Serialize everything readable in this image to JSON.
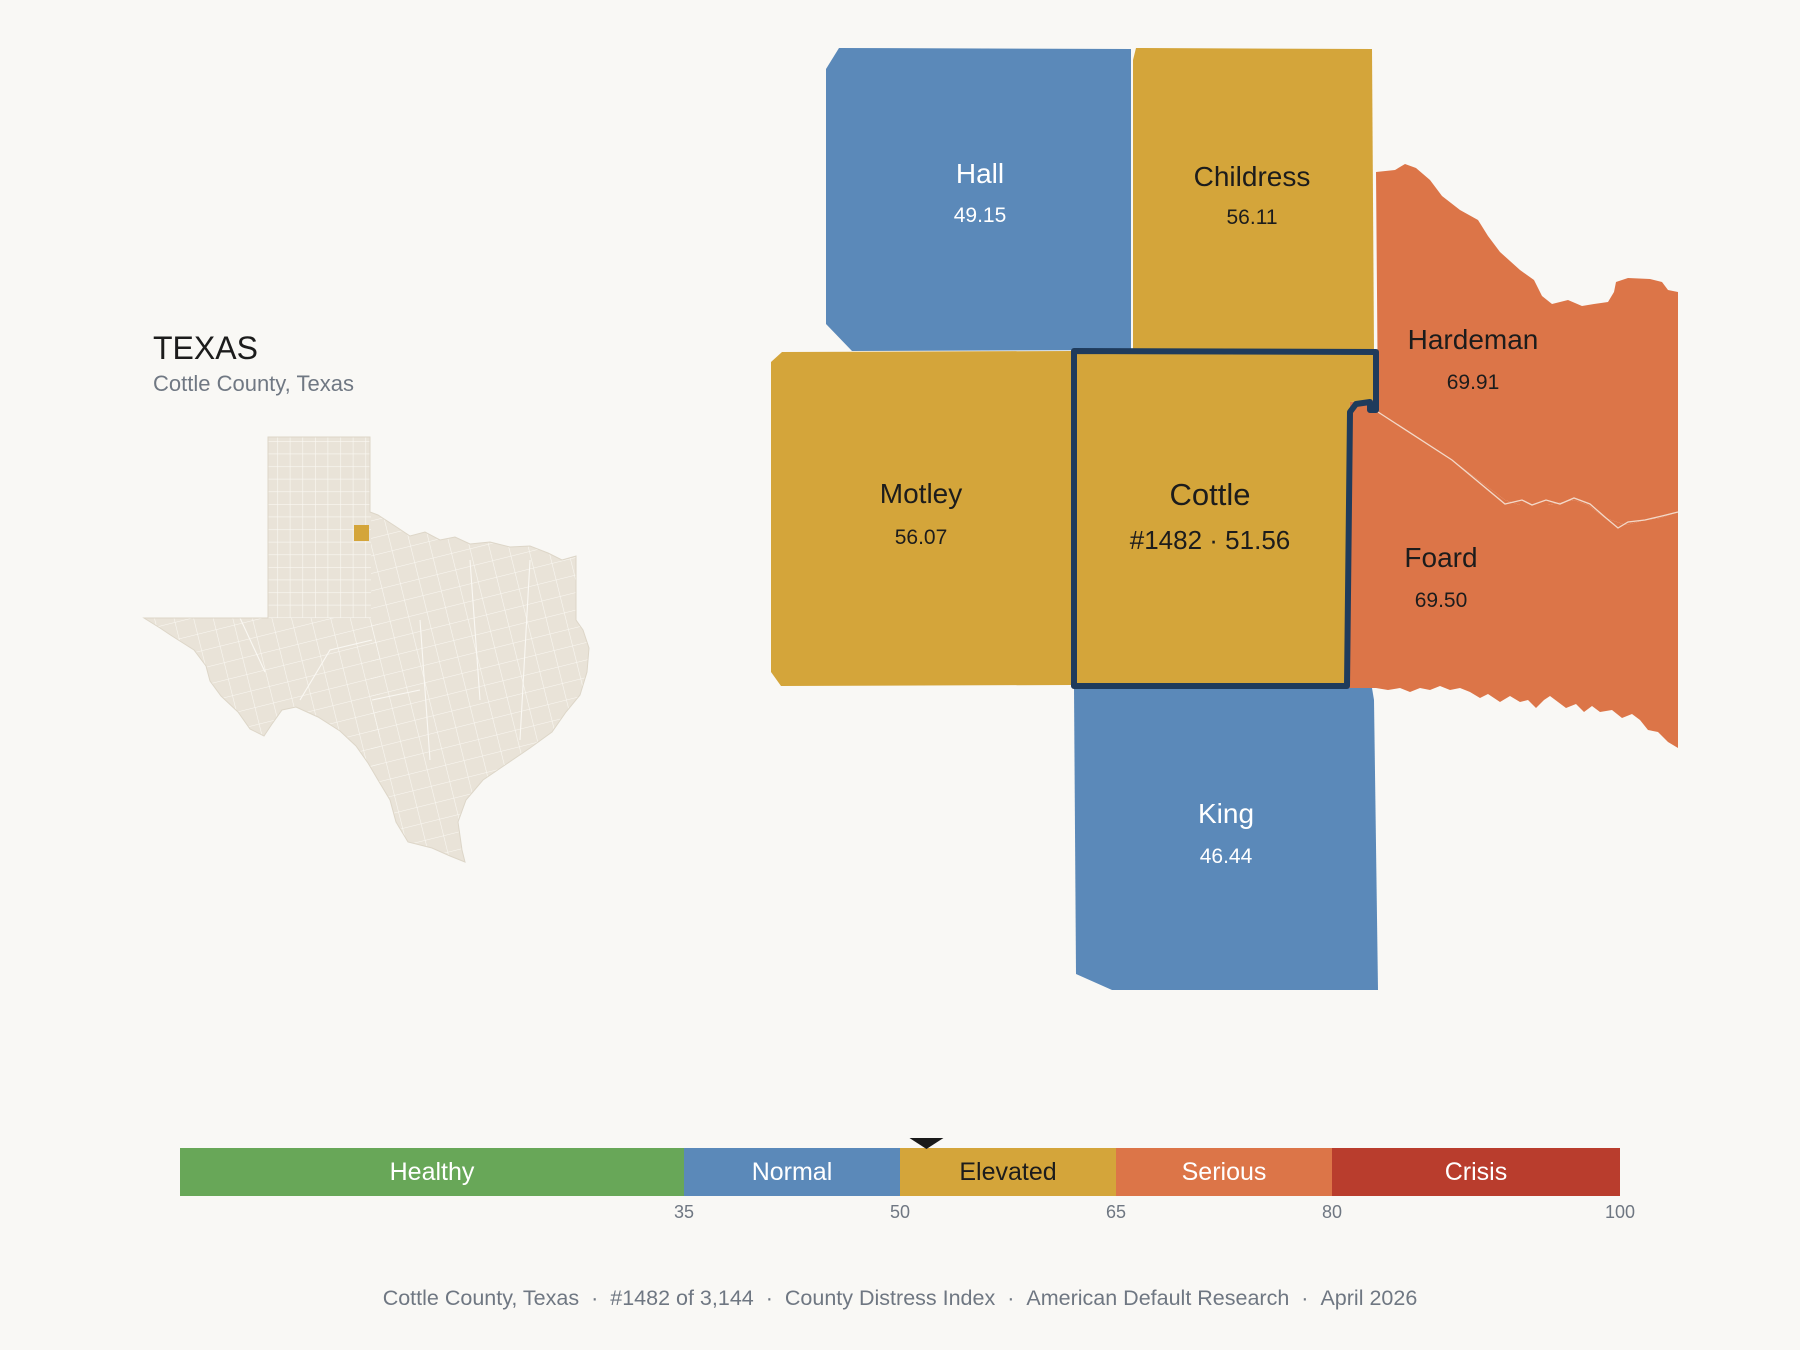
{
  "inset": {
    "state_title": "TEXAS",
    "county_subtitle": "Cottle County, Texas"
  },
  "counties": [
    {
      "id": "hall",
      "name": "Hall",
      "value": "49.15",
      "category": "Normal"
    },
    {
      "id": "childress",
      "name": "Childress",
      "value": "56.11",
      "category": "Elevated"
    },
    {
      "id": "hardeman",
      "name": "Hardeman",
      "value": "69.91",
      "category": "Serious"
    },
    {
      "id": "motley",
      "name": "Motley",
      "value": "56.07",
      "category": "Elevated"
    },
    {
      "id": "cottle",
      "name": "Cottle",
      "value": "#1482 · 51.56",
      "category": "Elevated",
      "selected": true
    },
    {
      "id": "foard",
      "name": "Foard",
      "value": "69.50",
      "category": "Serious"
    },
    {
      "id": "king",
      "name": "King",
      "value": "46.44",
      "category": "Normal"
    }
  ],
  "legend": {
    "bands": [
      {
        "label": "Healthy",
        "from": 0,
        "to": 35,
        "color": "#68a758"
      },
      {
        "label": "Normal",
        "from": 35,
        "to": 50,
        "color": "#5b89b9"
      },
      {
        "label": "Elevated",
        "from": 50,
        "to": 65,
        "color": "#d4a53a"
      },
      {
        "label": "Serious",
        "from": 65,
        "to": 80,
        "color": "#dc7548"
      },
      {
        "label": "Crisis",
        "from": 80,
        "to": 100,
        "color": "#b93d2d"
      }
    ],
    "ticks": [
      "35",
      "50",
      "65",
      "80",
      "100"
    ],
    "marker_value": 51.56
  },
  "colors": {
    "normal": "#5b89b9",
    "elevated": "#d4a53a",
    "serious": "#dc7548",
    "highlight_outline": "#1f3b5c",
    "inset_fill": "#e9e3d8",
    "background": "#f9f8f5"
  },
  "footer": {
    "county": "Cottle County, Texas",
    "rank": "#1482 of 3,144",
    "index_name": "County Distress Index",
    "publisher": "American Default Research",
    "date": "April 2026",
    "separator": "·"
  }
}
